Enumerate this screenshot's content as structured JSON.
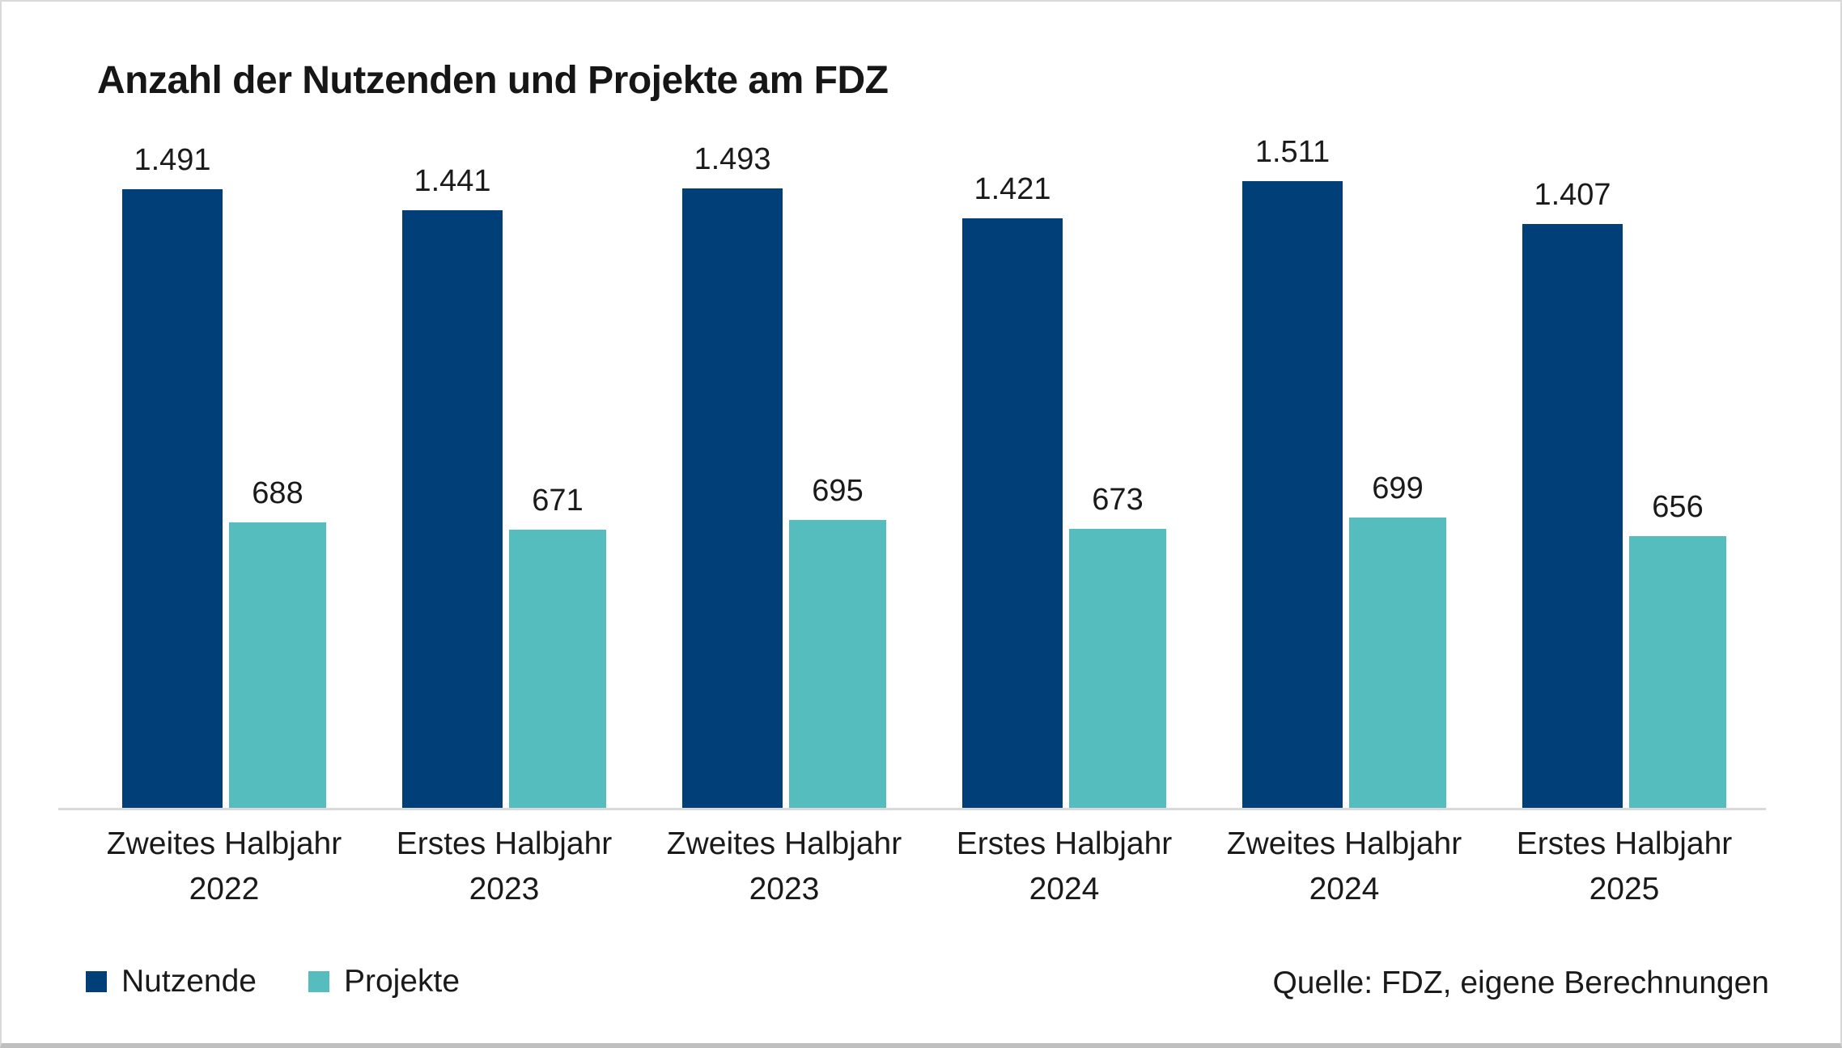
{
  "title": "Anzahl der Nutzenden und Projekte am FDZ",
  "source": "Quelle: FDZ, eigene Berechnungen",
  "colors": {
    "nutzende": "#003f78",
    "projekte": "#55bdbd",
    "axis": "#d9d9d9",
    "text": "#1a1a1a"
  },
  "legend": [
    {
      "label": "Nutzende",
      "color": "#003f78"
    },
    {
      "label": "Projekte",
      "color": "#55bdbd"
    }
  ],
  "chart_data": {
    "type": "bar",
    "title": "Anzahl der Nutzenden und Projekte am FDZ",
    "categories": [
      "Zweites Halbjahr 2022",
      "Erstes Halbjahr 2023",
      "Zweites Halbjahr 2023",
      "Erstes Halbjahr 2024",
      "Zweites Halbjahr 2024",
      "Erstes Halbjahr 2025"
    ],
    "categories_lines": [
      [
        "Zweites Halbjahr",
        "2022"
      ],
      [
        "Erstes Halbjahr",
        "2023"
      ],
      [
        "Zweites Halbjahr",
        "2023"
      ],
      [
        "Erstes Halbjahr",
        "2024"
      ],
      [
        "Zweites Halbjahr",
        "2024"
      ],
      [
        "Erstes Halbjahr",
        "2025"
      ]
    ],
    "series": [
      {
        "name": "Nutzende",
        "color": "#003f78",
        "values": [
          1491,
          1441,
          1493,
          1421,
          1511,
          1407
        ],
        "labels": [
          "1.491",
          "1.441",
          "1.493",
          "1.421",
          "1.511",
          "1.407"
        ]
      },
      {
        "name": "Projekte",
        "color": "#55bdbd",
        "values": [
          688,
          671,
          695,
          673,
          699,
          656
        ],
        "labels": [
          "688",
          "671",
          "695",
          "673",
          "699",
          "656"
        ]
      }
    ],
    "xlabel": "",
    "ylabel": "",
    "ylim": [
      0,
      1550
    ],
    "grid": false,
    "value_labels": true,
    "legend_position": "bottom-left",
    "source_note": "Quelle: FDZ, eigene Berechnungen"
  }
}
